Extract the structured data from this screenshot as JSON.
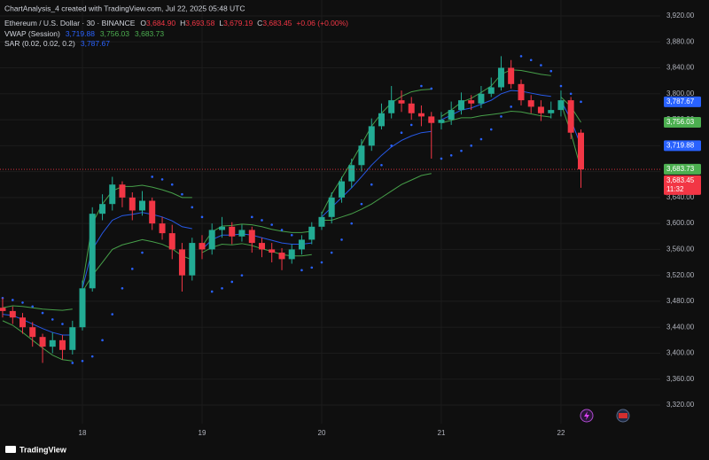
{
  "caption": "ChartAnalysis_4 created with TradingView.com, Jul 22, 2025 05:48 UTC",
  "brand": "TradingView",
  "chart_data": {
    "type": "candlestick",
    "title": "Ethereum / U.S. Dollar · 30 · BINANCE",
    "ohlc_legend": [
      {
        "key": "O",
        "value": "3,684.90"
      },
      {
        "key": "H",
        "value": "3,693.58"
      },
      {
        "key": "L",
        "value": "3,679.19"
      },
      {
        "key": "C",
        "value": "3,683.45"
      }
    ],
    "change": "+0.06 (+0.00%)",
    "countdown": "11:32",
    "up_color": "#22ab94",
    "down_color": "#f23645",
    "x": [
      17.333,
      17.417,
      17.5,
      17.583,
      17.667,
      17.75,
      17.833,
      17.917,
      18,
      18.083,
      18.167,
      18.25,
      18.333,
      18.417,
      18.5,
      18.583,
      18.667,
      18.75,
      18.833,
      18.917,
      19,
      19.083,
      19.167,
      19.25,
      19.333,
      19.417,
      19.5,
      19.583,
      19.667,
      19.75,
      19.833,
      19.917,
      20,
      20.083,
      20.167,
      20.25,
      20.333,
      20.417,
      20.5,
      20.583,
      20.667,
      20.75,
      20.833,
      20.917,
      21,
      21.083,
      21.167,
      21.25,
      21.333,
      21.417,
      21.5,
      21.583,
      21.667,
      21.75,
      21.833,
      21.917,
      22,
      22.083,
      22.167
    ],
    "open": [
      3470,
      3465,
      3455,
      3440,
      3425,
      3410,
      3420,
      3405,
      3440,
      3500,
      3615,
      3630,
      3660,
      3640,
      3620,
      3635,
      3600,
      3585,
      3560,
      3520,
      3570,
      3560,
      3590,
      3595,
      3580,
      3590,
      3570,
      3560,
      3555,
      3545,
      3560,
      3575,
      3595,
      3610,
      3640,
      3665,
      3690,
      3720,
      3750,
      3770,
      3790,
      3785,
      3770,
      3765,
      3755,
      3760,
      3775,
      3790,
      3785,
      3800,
      3810,
      3840,
      3815,
      3790,
      3780,
      3770,
      3775,
      3790,
      3740
    ],
    "high": [
      3485,
      3472,
      3462,
      3448,
      3430,
      3432,
      3428,
      3450,
      3512,
      3625,
      3645,
      3672,
      3665,
      3648,
      3650,
      3640,
      3610,
      3598,
      3570,
      3578,
      3582,
      3600,
      3610,
      3602,
      3598,
      3595,
      3578,
      3570,
      3562,
      3568,
      3582,
      3602,
      3618,
      3648,
      3672,
      3700,
      3730,
      3762,
      3785,
      3812,
      3805,
      3795,
      3782,
      3772,
      3772,
      3788,
      3802,
      3798,
      3812,
      3825,
      3858,
      3852,
      3822,
      3798,
      3790,
      3788,
      3805,
      3795,
      3745
    ],
    "low": [
      3455,
      3445,
      3430,
      3410,
      3385,
      3400,
      3390,
      3398,
      3435,
      3495,
      3605,
      3620,
      3625,
      3605,
      3612,
      3590,
      3575,
      3545,
      3495,
      3512,
      3545,
      3552,
      3578,
      3568,
      3572,
      3555,
      3548,
      3540,
      3528,
      3538,
      3552,
      3568,
      3590,
      3600,
      3632,
      3655,
      3680,
      3712,
      3745,
      3762,
      3772,
      3760,
      3750,
      3700,
      3745,
      3752,
      3768,
      3775,
      3778,
      3795,
      3805,
      3808,
      3782,
      3770,
      3758,
      3762,
      3765,
      3730,
      3655
    ],
    "close": [
      3465,
      3455,
      3440,
      3425,
      3410,
      3420,
      3405,
      3440,
      3500,
      3615,
      3630,
      3660,
      3640,
      3620,
      3635,
      3600,
      3585,
      3560,
      3520,
      3570,
      3560,
      3590,
      3595,
      3580,
      3590,
      3570,
      3560,
      3555,
      3545,
      3560,
      3575,
      3595,
      3610,
      3640,
      3665,
      3690,
      3720,
      3750,
      3770,
      3790,
      3785,
      3770,
      3765,
      3755,
      3760,
      3775,
      3790,
      3785,
      3800,
      3810,
      3840,
      3815,
      3790,
      3780,
      3770,
      3775,
      3790,
      3740,
      3683.45
    ],
    "indicators": [
      {
        "name": "VWAP (Session)",
        "style": "line",
        "lines": [
          {
            "color": "#2962ff",
            "last_label": "3,719.88",
            "values": [
              3460,
              3458,
              3452,
              3445,
              3438,
              3432,
              3428,
              3428,
              3500,
              3560,
              3585,
              3605,
              3612,
              3614,
              3617,
              3614,
              3610,
              3604,
              3595,
              3592,
              3560,
              3575,
              3582,
              3582,
              3584,
              3582,
              3578,
              3574,
              3570,
              3568,
              3568,
              3570,
              3610,
              3625,
              3640,
              3655,
              3672,
              3690,
              3705,
              3718,
              3728,
              3735,
              3740,
              3742,
              3760,
              3767,
              3775,
              3778,
              3784,
              3790,
              3800,
              3805,
              3804,
              3801,
              3798,
              3796,
              3790,
              3760,
              3719.88
            ]
          },
          {
            "color": "#4caf50",
            "last_label": "3,756.03",
            "values": [
              3470,
              3473,
              3472,
              3470,
              3468,
              3467,
              3466,
              3468,
              3505,
              3600,
              3630,
              3650,
              3657,
              3657,
              3659,
              3656,
              3652,
              3647,
              3640,
              3640,
              3565,
              3587,
              3596,
              3597,
              3599,
              3598,
              3595,
              3591,
              3588,
              3586,
              3586,
              3588,
              3615,
              3645,
              3670,
              3695,
              3722,
              3750,
              3770,
              3786,
              3796,
              3803,
              3806,
              3807,
              3765,
              3775,
              3787,
              3793,
              3802,
              3812,
              3830,
              3837,
              3836,
              3833,
              3830,
              3828,
              3795,
              3780,
              3756.03
            ]
          },
          {
            "color": "#4caf50",
            "last_label": "3,683.73",
            "values": [
              3450,
              3443,
              3432,
              3420,
              3408,
              3397,
              3390,
              3388,
              3495,
              3520,
              3540,
              3560,
              3567,
              3571,
              3575,
              3572,
              3568,
              3561,
              3550,
              3544,
              3555,
              3563,
              3568,
              3567,
              3569,
              3566,
              3561,
              3557,
              3552,
              3550,
              3550,
              3552,
              3605,
              3605,
              3610,
              3615,
              3622,
              3630,
              3640,
              3650,
              3660,
              3667,
              3674,
              3677,
              3755,
              3759,
              3763,
              3763,
              3766,
              3768,
              3770,
              3773,
              3772,
              3769,
              3766,
              3764,
              3785,
              3740,
              3683.73
            ]
          }
        ]
      },
      {
        "name": "SAR (0.02, 0.02, 0.2)",
        "style": "dots",
        "lines": [
          {
            "color": "#2962ff",
            "last_label": "3,787.67",
            "values": [
              3485,
              3482,
              3478,
              3472,
              3462,
              3452,
              3445,
              3385,
              3388,
              3395,
              3420,
              3460,
              3500,
              3530,
              3555,
              3672,
              3668,
              3660,
              3645,
              3625,
              3610,
              3495,
              3500,
              3510,
              3520,
              3610,
              3605,
              3598,
              3590,
              3582,
              3528,
              3532,
              3540,
              3555,
              3575,
              3600,
              3630,
              3660,
              3690,
              3720,
              3740,
              3752,
              3812,
              3808,
              3700,
              3705,
              3712,
              3720,
              3730,
              3745,
              3765,
              3780,
              3858,
              3852,
              3844,
              3835,
              3812,
              3800,
              3787.67
            ]
          }
        ]
      }
    ],
    "xlim": [
      17.311,
      22.83
    ],
    "xticks": [
      18,
      19,
      20,
      21,
      22
    ],
    "ylim": [
      3291.3,
      3944.6
    ],
    "yticks": [
      {
        "value": 3320,
        "label": "3,320.00"
      },
      {
        "value": 3360,
        "label": "3,360.00"
      },
      {
        "value": 3400,
        "label": "3,400.00"
      },
      {
        "value": 3440,
        "label": "3,440.00"
      },
      {
        "value": 3480,
        "label": "3,480.00"
      },
      {
        "value": 3520,
        "label": "3,520.00"
      },
      {
        "value": 3560,
        "label": "3,560.00"
      },
      {
        "value": 3600,
        "label": "3,600.00"
      },
      {
        "value": 3640,
        "label": "3,640.00"
      },
      {
        "value": 3680,
        "label": "3,680.00"
      },
      {
        "value": 3720,
        "label": "3,720.00"
      },
      {
        "value": 3760,
        "label": "3,760.00"
      },
      {
        "value": 3800,
        "label": "3,800.00"
      },
      {
        "value": 3840,
        "label": "3,840.00"
      },
      {
        "value": 3880,
        "label": "3,880.00"
      },
      {
        "value": 3920,
        "label": "3,920.00"
      }
    ],
    "grid": true
  }
}
